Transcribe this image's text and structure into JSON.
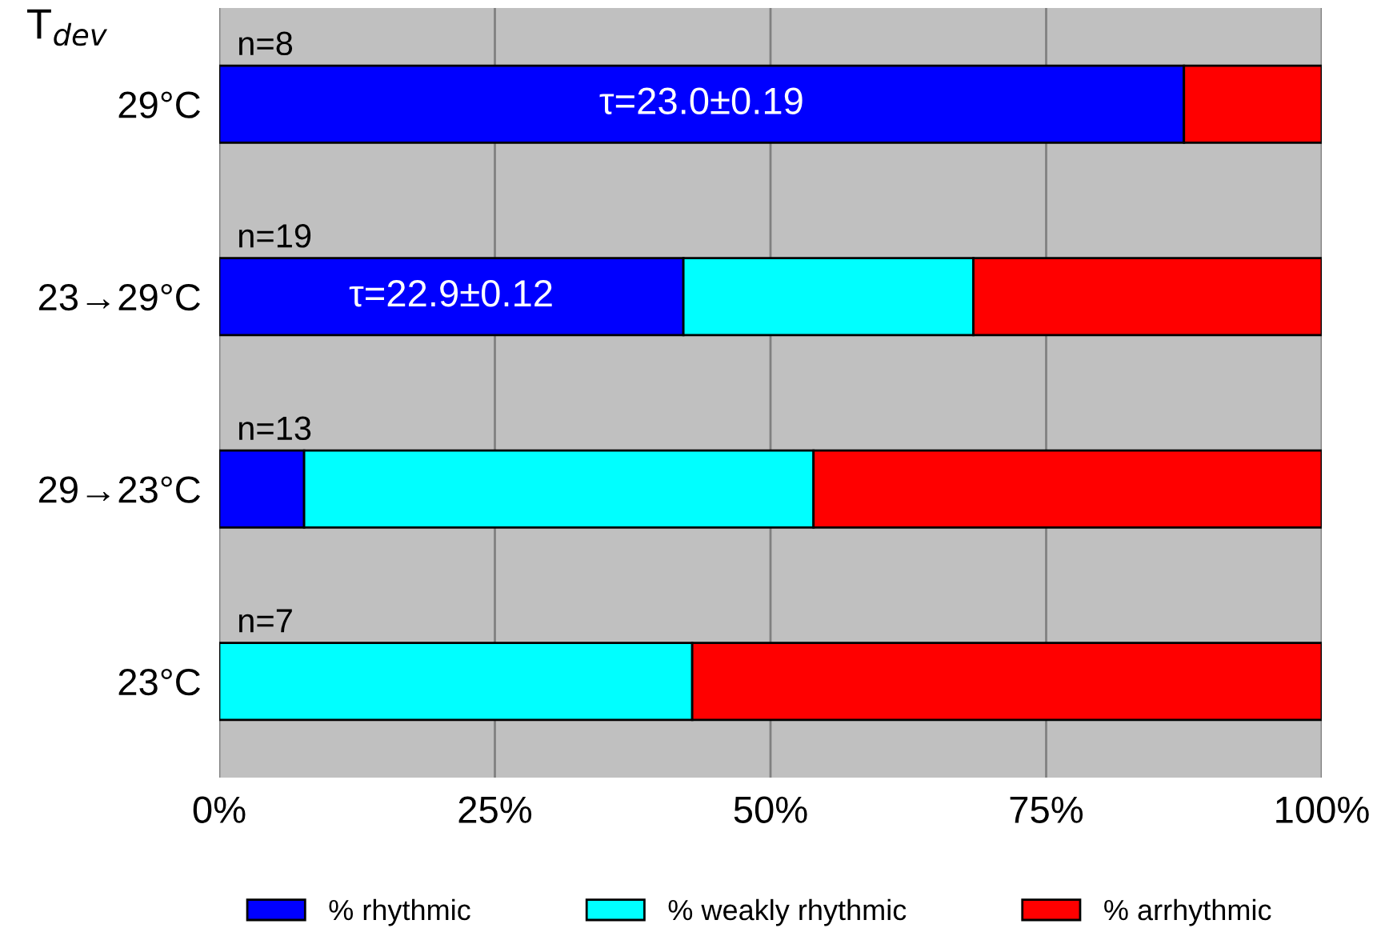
{
  "chart_data": {
    "type": "bar",
    "orientation": "horizontal",
    "stacked": true,
    "ylabel": "T$_{dev}$",
    "categories": [
      "29°C",
      "23→29°C",
      "29→23°C",
      "23°C"
    ],
    "series": [
      {
        "name": "% rhythmic",
        "color": "#0000ff",
        "values": [
          87.5,
          42.1,
          7.7,
          0
        ]
      },
      {
        "name": "% weakly rhythmic",
        "color": "#00ffff",
        "values": [
          0,
          26.3,
          46.2,
          42.9
        ]
      },
      {
        "name": "% arrhythmic",
        "color": "#ff0000",
        "values": [
          12.5,
          31.6,
          46.1,
          57.1
        ]
      }
    ],
    "xlim": [
      0,
      100
    ],
    "xticks": [
      {
        "value": 0,
        "label": "0%"
      },
      {
        "value": 25,
        "label": "25%"
      },
      {
        "value": 50,
        "label": "50%"
      },
      {
        "value": 75,
        "label": "75%"
      },
      {
        "value": 100,
        "label": "100%"
      }
    ],
    "grid": "x",
    "legend": "bottom",
    "annotations": [
      "n=8",
      "n=19",
      "n=13",
      "n=7",
      "τ=23.0±0.19",
      "τ=22.9±0.12"
    ]
  }
}
